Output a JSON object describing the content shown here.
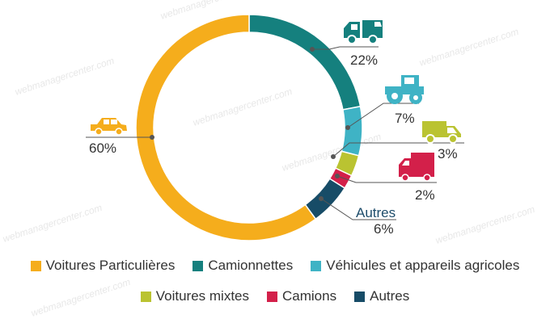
{
  "chart_data": {
    "type": "pie",
    "donut": true,
    "categories": [
      "Voitures Particulières",
      "Camionnettes",
      "Véhicules et appareils agricoles",
      "Voitures mixtes",
      "Camions",
      "Autres"
    ],
    "values": [
      60,
      22,
      7,
      3,
      2,
      6
    ],
    "labels": [
      "60%",
      "22%",
      "7%",
      "3%",
      "2%",
      "6%"
    ],
    "colors": [
      "#f5ad1c",
      "#15807e",
      "#3fb3c5",
      "#bac331",
      "#d3204a",
      "#174c67"
    ],
    "callout_label": "Autres",
    "legend_position": "bottom",
    "icons": [
      "car-icon",
      "van-icon",
      "tractor-icon",
      "small-van-icon",
      "truck-icon"
    ]
  },
  "watermark": "webmanagercenter.com"
}
